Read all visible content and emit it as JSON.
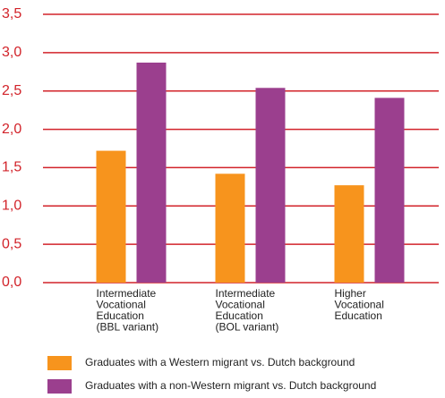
{
  "chart_data": {
    "type": "bar",
    "categories": [
      "Intermediate\nVocational\nEducation\n(BBL variant)",
      "Intermediate\nVocational\nEducation\n(BOL variant)",
      "Higher\nVocational\nEducation"
    ],
    "series": [
      {
        "name": "Graduates with a Western migrant vs. Dutch background",
        "color": "#f7941d",
        "values": [
          1.72,
          1.42,
          1.27
        ]
      },
      {
        "name": "Graduates with a non-Western migrant vs. Dutch background",
        "color": "#9b3f8e",
        "values": [
          2.87,
          2.54,
          2.41
        ]
      }
    ],
    "ylim": [
      0,
      3.5
    ],
    "yticks": [
      {
        "value": 0,
        "label": "0,0"
      },
      {
        "value": 0.5,
        "label": "0,5"
      },
      {
        "value": 1,
        "label": "1,0"
      },
      {
        "value": 1.5,
        "label": "1,5"
      },
      {
        "value": 2,
        "label": "2,0"
      },
      {
        "value": 2.5,
        "label": "2,5"
      },
      {
        "value": 3,
        "label": "3,0"
      },
      {
        "value": 3.5,
        "label": "3,5"
      }
    ],
    "grid": true,
    "grid_color": "#d2232a"
  }
}
